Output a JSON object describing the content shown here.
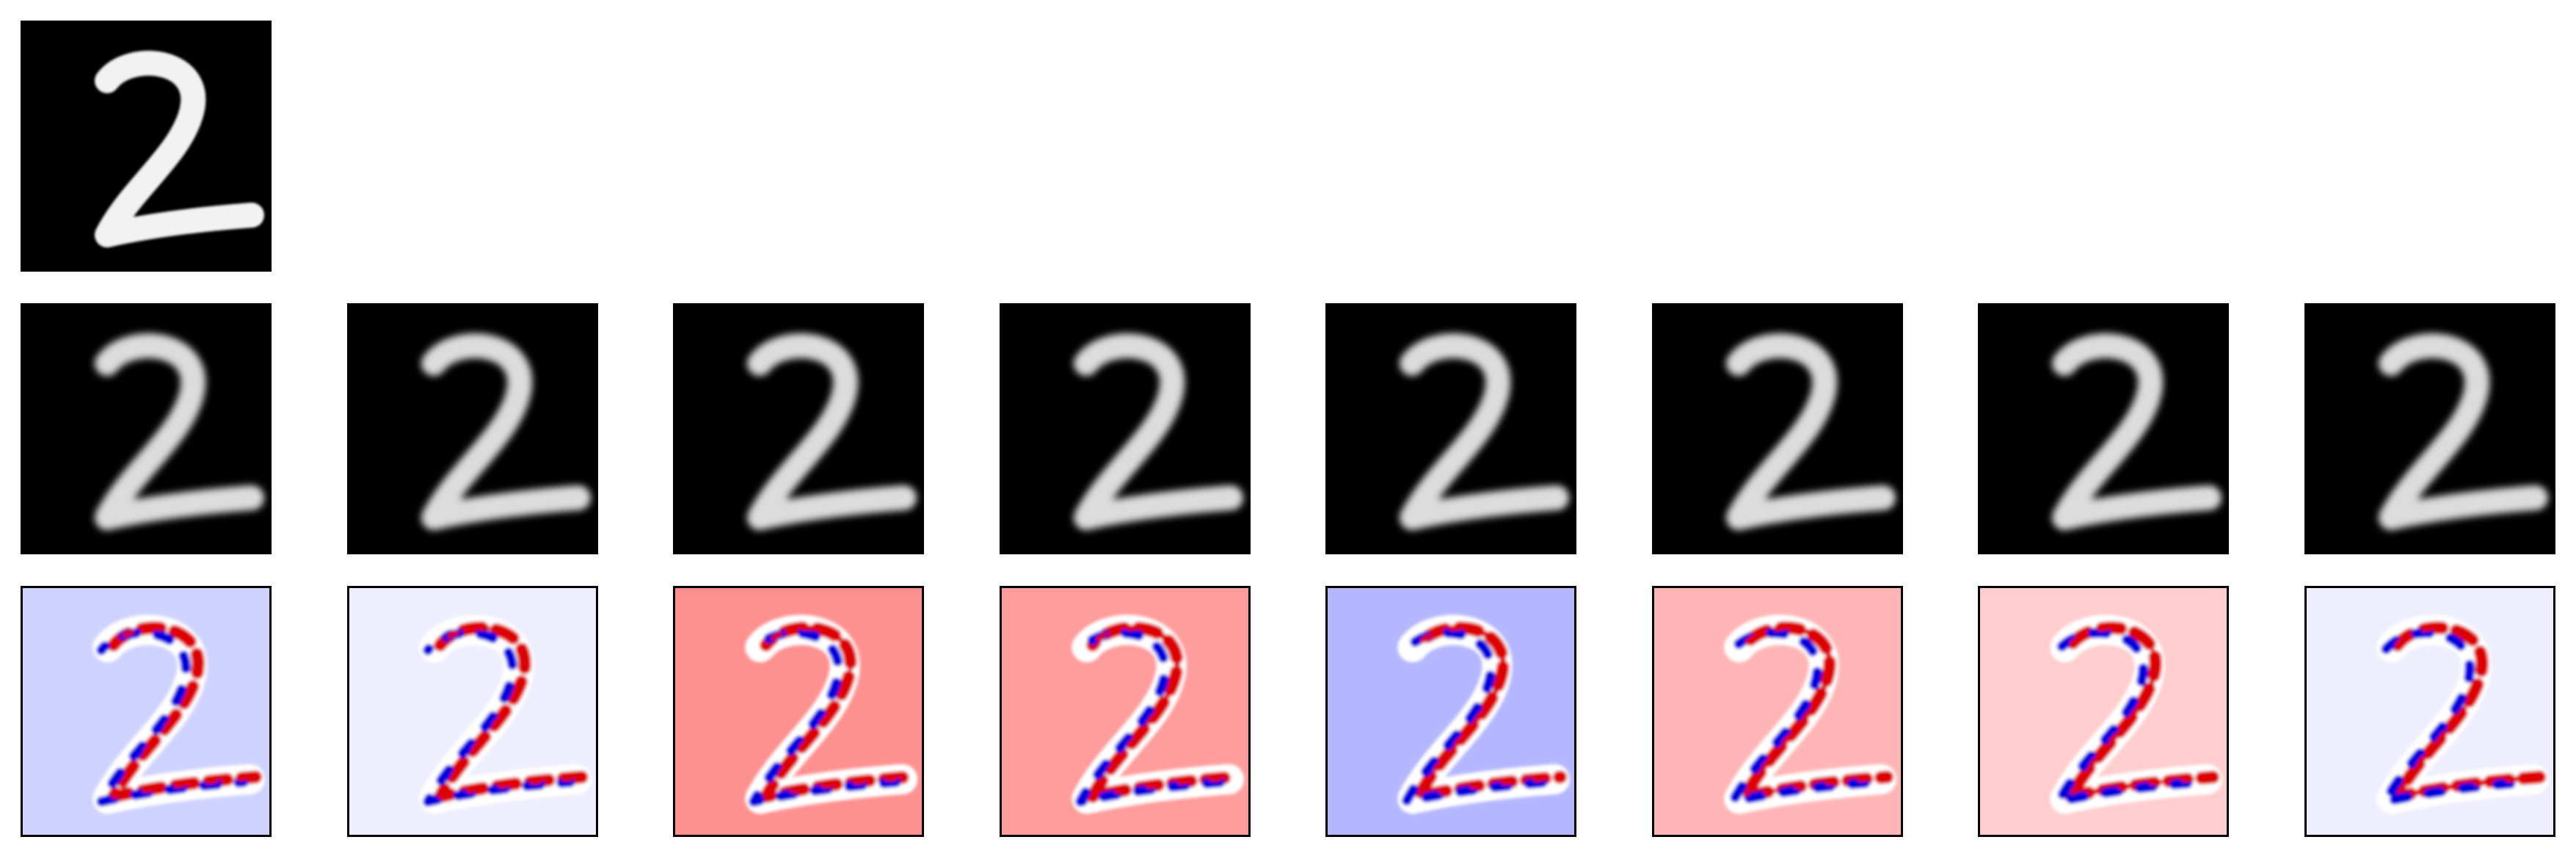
{
  "figure": {
    "original": {
      "kind": "grayscale-digit",
      "background": "#000000",
      "stroke": "#f2f2f2"
    },
    "reconstructions": [
      {
        "kind": "grayscale-digit",
        "background": "#000000",
        "stroke": "#dcdcdc"
      },
      {
        "kind": "grayscale-digit",
        "background": "#000000",
        "stroke": "#dcdcdc"
      },
      {
        "kind": "grayscale-digit",
        "background": "#000000",
        "stroke": "#dcdcdc"
      },
      {
        "kind": "grayscale-digit",
        "background": "#000000",
        "stroke": "#dcdcdc"
      },
      {
        "kind": "grayscale-digit",
        "background": "#000000",
        "stroke": "#dcdcdc"
      },
      {
        "kind": "grayscale-digit",
        "background": "#000000",
        "stroke": "#dcdcdc"
      },
      {
        "kind": "grayscale-digit",
        "background": "#000000",
        "stroke": "#dcdcdc"
      },
      {
        "kind": "grayscale-digit",
        "background": "#000000",
        "stroke": "#dcdcdc"
      }
    ],
    "difference_maps": [
      {
        "kind": "diverging-heatmap",
        "background": "#cfd2ff"
      },
      {
        "kind": "diverging-heatmap",
        "background": "#eeeeff"
      },
      {
        "kind": "diverging-heatmap",
        "background": "#ff9090"
      },
      {
        "kind": "diverging-heatmap",
        "background": "#ff9c9c"
      },
      {
        "kind": "diverging-heatmap",
        "background": "#b4b6ff"
      },
      {
        "kind": "diverging-heatmap",
        "background": "#ffb5b5"
      },
      {
        "kind": "diverging-heatmap",
        "background": "#ffcdcd"
      },
      {
        "kind": "diverging-heatmap",
        "background": "#eeeeff"
      }
    ],
    "colormap": {
      "positive": "#dd0000",
      "negative": "#0000dd",
      "neutral": "#ffffff"
    }
  }
}
